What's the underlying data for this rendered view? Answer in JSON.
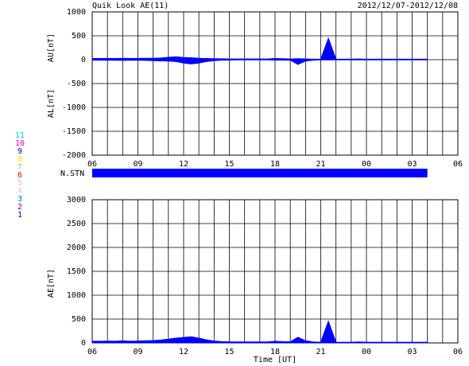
{
  "chart_data": [
    {
      "type": "area",
      "title": "Quik Look AE(11)",
      "subtitle": "2012/12/07-2012/12/08",
      "y_labels": [
        "AU[nT]",
        "AL[nT]"
      ],
      "xlim": [
        0,
        24
      ],
      "xticks": [
        {
          "value": 0,
          "label": "06"
        },
        {
          "value": 3,
          "label": "09"
        },
        {
          "value": 6,
          "label": "12"
        },
        {
          "value": 9,
          "label": "15"
        },
        {
          "value": 12,
          "label": "18"
        },
        {
          "value": 15,
          "label": "21"
        },
        {
          "value": 18,
          "label": "00"
        },
        {
          "value": 21,
          "label": "03"
        },
        {
          "value": 24,
          "label": "06"
        }
      ],
      "x_minor_ticks": [
        1,
        2,
        4,
        5,
        7,
        8,
        10,
        11,
        13,
        14,
        16,
        17,
        19,
        20,
        22,
        23
      ],
      "ylim": [
        -2000,
        1000
      ],
      "yticks": [
        -2000,
        -1500,
        -1000,
        -500,
        0,
        500,
        1000
      ],
      "grid": true,
      "x": [
        0,
        0.5,
        1,
        1.5,
        2,
        2.5,
        3,
        3.5,
        4,
        4.5,
        5,
        5.5,
        6,
        6.5,
        7,
        7.5,
        8,
        8.5,
        9,
        9.5,
        10,
        10.5,
        11,
        11.5,
        12,
        12.5,
        13,
        13.5,
        14,
        14.5,
        15,
        15.5,
        16,
        16.5,
        17,
        17.5,
        18,
        18.5,
        19,
        19.5,
        20,
        20.5,
        21,
        21.5,
        22
      ],
      "series": [
        {
          "name": "AU",
          "color": "#0000ff",
          "values": [
            25,
            25,
            28,
            25,
            30,
            25,
            28,
            30,
            30,
            35,
            50,
            60,
            45,
            40,
            30,
            25,
            20,
            18,
            15,
            15,
            15,
            15,
            15,
            15,
            25,
            20,
            15,
            20,
            15,
            10,
            10,
            450,
            10,
            10,
            10,
            15,
            10,
            10,
            10,
            10,
            10,
            10,
            10,
            10,
            10
          ]
        },
        {
          "name": "AL",
          "color": "#0000ff",
          "values": [
            -10,
            -10,
            -12,
            -10,
            -15,
            -10,
            -12,
            -15,
            -20,
            -25,
            -30,
            -40,
            -70,
            -90,
            -70,
            -40,
            -20,
            -10,
            -8,
            -5,
            -5,
            -5,
            -5,
            -5,
            -10,
            -8,
            -10,
            -100,
            -30,
            -10,
            -5,
            -5,
            -5,
            -5,
            -5,
            -5,
            -5,
            -5,
            -5,
            -5,
            -5,
            -5,
            -5,
            -5,
            -5
          ]
        }
      ]
    },
    {
      "type": "coverage",
      "label": "N.STN",
      "color": "#0000ff",
      "xlim": [
        0,
        24
      ],
      "range": [
        0,
        22
      ],
      "stations": [
        {
          "name": "11",
          "color": "#00cccc"
        },
        {
          "name": "10",
          "color": "#ff00ff"
        },
        {
          "name": "9",
          "color": "#0000cc"
        },
        {
          "name": "8",
          "color": "#e6e600"
        },
        {
          "name": "7",
          "color": "#66e666"
        },
        {
          "name": "6",
          "color": "#ff0000"
        },
        {
          "name": "5",
          "color": "#cccccc"
        },
        {
          "name": "4",
          "color": "#cccccc"
        },
        {
          "name": "3",
          "color": "#008888"
        },
        {
          "name": "2",
          "color": "#880088"
        },
        {
          "name": "1",
          "color": "#0000aa"
        }
      ]
    },
    {
      "type": "area",
      "y_labels": [
        "AE[nT]"
      ],
      "xlabel": "Time [UT]",
      "xlim": [
        0,
        24
      ],
      "xticks": [
        {
          "value": 0,
          "label": "06"
        },
        {
          "value": 3,
          "label": "09"
        },
        {
          "value": 6,
          "label": "12"
        },
        {
          "value": 9,
          "label": "15"
        },
        {
          "value": 12,
          "label": "18"
        },
        {
          "value": 15,
          "label": "21"
        },
        {
          "value": 18,
          "label": "00"
        },
        {
          "value": 21,
          "label": "03"
        },
        {
          "value": 24,
          "label": "06"
        }
      ],
      "x_minor_ticks": [
        1,
        2,
        4,
        5,
        7,
        8,
        10,
        11,
        13,
        14,
        16,
        17,
        19,
        20,
        22,
        23
      ],
      "ylim": [
        0,
        3000
      ],
      "yticks": [
        0,
        500,
        1000,
        1500,
        2000,
        2500,
        3000
      ],
      "grid": true,
      "x": [
        0,
        0.5,
        1,
        1.5,
        2,
        2.5,
        3,
        3.5,
        4,
        4.5,
        5,
        5.5,
        6,
        6.5,
        7,
        7.5,
        8,
        8.5,
        9,
        9.5,
        10,
        10.5,
        11,
        11.5,
        12,
        12.5,
        13,
        13.5,
        14,
        14.5,
        15,
        15.5,
        16,
        16.5,
        17,
        17.5,
        18,
        18.5,
        19,
        19.5,
        20,
        20.5,
        21,
        21.5,
        22
      ],
      "series": [
        {
          "name": "AE",
          "color": "#0000ff",
          "values": [
            35,
            35,
            40,
            35,
            45,
            35,
            40,
            45,
            50,
            60,
            80,
            100,
            115,
            130,
            100,
            65,
            40,
            28,
            23,
            20,
            20,
            20,
            20,
            20,
            35,
            28,
            25,
            120,
            45,
            20,
            15,
            455,
            15,
            15,
            15,
            20,
            15,
            15,
            15,
            15,
            15,
            15,
            15,
            15,
            15
          ]
        }
      ]
    }
  ]
}
